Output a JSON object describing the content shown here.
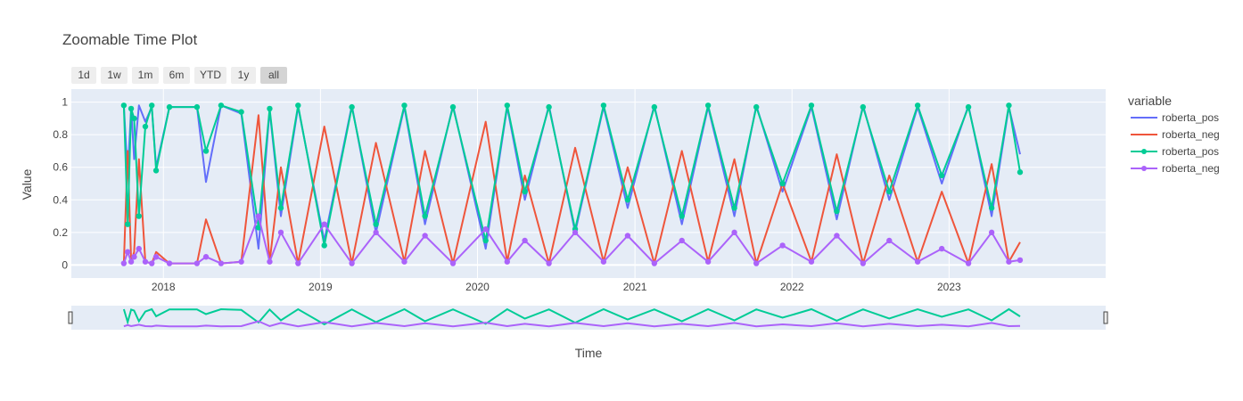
{
  "chart_data": {
    "type": "line",
    "title": "Zoomable Time Plot",
    "xlabel": "Time",
    "ylabel": "Value",
    "x_range": [
      "2017-06-01",
      "2023-12-31"
    ],
    "ylim": [
      -0.08,
      1.08
    ],
    "yticks": [
      0,
      0.2,
      0.4,
      0.6,
      0.8,
      1
    ],
    "ytick_labels": [
      "0",
      "0.2",
      "0.4",
      "0.6",
      "0.8",
      "1"
    ],
    "xticks": [
      "2018-01-01",
      "2019-01-01",
      "2020-01-01",
      "2021-01-01",
      "2022-01-01",
      "2023-01-01"
    ],
    "xtick_labels": [
      "2018",
      "2019",
      "2020",
      "2021",
      "2022",
      "2023"
    ],
    "grid": true,
    "legend": {
      "title": "variable",
      "position": "right",
      "items": [
        "roberta_pos",
        "roberta_neg",
        "roberta_pos",
        "roberta_neg"
      ]
    },
    "range_selector": {
      "buttons": [
        "1d",
        "1w",
        "1m",
        "6m",
        "YTD",
        "1y",
        "all"
      ],
      "active": "all"
    },
    "series": [
      {
        "name": "roberta_pos",
        "color": "#636efa",
        "mode": "lines",
        "x": [
          "2017-10-01",
          "2017-10-10",
          "2017-10-18",
          "2017-10-25",
          "2017-11-05",
          "2017-11-20",
          "2017-12-05",
          "2017-12-15",
          "2018-01-15",
          "2018-03-20",
          "2018-04-10",
          "2018-05-15",
          "2018-07-01",
          "2018-08-10",
          "2018-09-05",
          "2018-10-01",
          "2018-11-10",
          "2019-01-10",
          "2019-03-15",
          "2019-05-10",
          "2019-07-15",
          "2019-09-01",
          "2019-11-05",
          "2020-01-20",
          "2020-03-10",
          "2020-04-20",
          "2020-06-15",
          "2020-08-15",
          "2020-10-20",
          "2020-12-15",
          "2021-02-15",
          "2021-04-20",
          "2021-06-20",
          "2021-08-20",
          "2021-10-10",
          "2021-12-10",
          "2022-02-15",
          "2022-04-15",
          "2022-06-15",
          "2022-08-15",
          "2022-10-20",
          "2022-12-15",
          "2023-02-15",
          "2023-04-10",
          "2023-05-20",
          "2023-06-15"
        ],
        "values": [
          0.98,
          0.55,
          0.97,
          0.65,
          0.98,
          0.88,
          0.97,
          0.6,
          0.97,
          0.97,
          0.51,
          0.98,
          0.93,
          0.1,
          0.95,
          0.3,
          0.97,
          0.15,
          0.98,
          0.2,
          0.97,
          0.25,
          0.98,
          0.1,
          0.97,
          0.4,
          0.98,
          0.2,
          0.97,
          0.35,
          0.98,
          0.25,
          0.97,
          0.3,
          0.98,
          0.45,
          0.97,
          0.28,
          0.98,
          0.4,
          0.97,
          0.5,
          0.98,
          0.3,
          0.97,
          0.68
        ]
      },
      {
        "name": "roberta_neg",
        "color": "#ef553b",
        "mode": "lines",
        "x": [
          "2017-10-01",
          "2017-10-10",
          "2017-10-18",
          "2017-10-25",
          "2017-11-05",
          "2017-11-20",
          "2017-12-05",
          "2017-12-15",
          "2018-01-15",
          "2018-03-20",
          "2018-04-10",
          "2018-05-15",
          "2018-07-01",
          "2018-08-10",
          "2018-09-05",
          "2018-10-01",
          "2018-11-10",
          "2019-01-10",
          "2019-03-15",
          "2019-05-10",
          "2019-07-15",
          "2019-09-01",
          "2019-11-05",
          "2020-01-20",
          "2020-03-10",
          "2020-04-20",
          "2020-06-15",
          "2020-08-15",
          "2020-10-20",
          "2020-12-15",
          "2021-02-15",
          "2021-04-20",
          "2021-06-20",
          "2021-08-20",
          "2021-10-10",
          "2021-12-10",
          "2022-02-15",
          "2022-04-15",
          "2022-06-15",
          "2022-08-15",
          "2022-10-20",
          "2022-12-15",
          "2023-02-15",
          "2023-04-10",
          "2023-05-20",
          "2023-06-15"
        ],
        "values": [
          0.01,
          0.7,
          0.02,
          0.08,
          0.65,
          0.02,
          0.01,
          0.08,
          0.01,
          0.01,
          0.28,
          0.01,
          0.02,
          0.92,
          0.02,
          0.6,
          0.01,
          0.85,
          0.01,
          0.75,
          0.02,
          0.7,
          0.01,
          0.88,
          0.02,
          0.55,
          0.01,
          0.72,
          0.02,
          0.6,
          0.01,
          0.7,
          0.02,
          0.65,
          0.01,
          0.5,
          0.02,
          0.68,
          0.01,
          0.55,
          0.02,
          0.45,
          0.01,
          0.62,
          0.02,
          0.14
        ]
      },
      {
        "name": "roberta_pos",
        "color": "#00cc96",
        "mode": "lines+markers",
        "x": [
          "2017-10-01",
          "2017-10-10",
          "2017-10-18",
          "2017-10-25",
          "2017-11-05",
          "2017-11-20",
          "2017-12-05",
          "2017-12-15",
          "2018-01-15",
          "2018-03-20",
          "2018-04-10",
          "2018-05-15",
          "2018-07-01",
          "2018-08-10",
          "2018-09-05",
          "2018-10-01",
          "2018-11-10",
          "2019-01-10",
          "2019-03-15",
          "2019-05-10",
          "2019-07-15",
          "2019-09-01",
          "2019-11-05",
          "2020-01-20",
          "2020-03-10",
          "2020-04-20",
          "2020-06-15",
          "2020-08-15",
          "2020-10-20",
          "2020-12-15",
          "2021-02-15",
          "2021-04-20",
          "2021-06-20",
          "2021-08-20",
          "2021-10-10",
          "2021-12-10",
          "2022-02-15",
          "2022-04-15",
          "2022-06-15",
          "2022-08-15",
          "2022-10-20",
          "2022-12-15",
          "2023-02-15",
          "2023-04-10",
          "2023-05-20",
          "2023-06-15"
        ],
        "values": [
          0.98,
          0.25,
          0.96,
          0.9,
          0.3,
          0.85,
          0.98,
          0.58,
          0.97,
          0.97,
          0.7,
          0.98,
          0.94,
          0.23,
          0.96,
          0.35,
          0.98,
          0.12,
          0.97,
          0.25,
          0.98,
          0.3,
          0.97,
          0.15,
          0.98,
          0.45,
          0.97,
          0.22,
          0.98,
          0.4,
          0.97,
          0.3,
          0.98,
          0.35,
          0.97,
          0.5,
          0.98,
          0.33,
          0.97,
          0.45,
          0.98,
          0.55,
          0.97,
          0.35,
          0.98,
          0.57
        ]
      },
      {
        "name": "roberta_neg",
        "color": "#ab63fa",
        "mode": "lines+markers",
        "x": [
          "2017-10-01",
          "2017-10-10",
          "2017-10-18",
          "2017-10-25",
          "2017-11-05",
          "2017-11-20",
          "2017-12-05",
          "2017-12-15",
          "2018-01-15",
          "2018-03-20",
          "2018-04-10",
          "2018-05-15",
          "2018-07-01",
          "2018-08-10",
          "2018-09-05",
          "2018-10-01",
          "2018-11-10",
          "2019-01-10",
          "2019-03-15",
          "2019-05-10",
          "2019-07-15",
          "2019-09-01",
          "2019-11-05",
          "2020-01-20",
          "2020-03-10",
          "2020-04-20",
          "2020-06-15",
          "2020-08-15",
          "2020-10-20",
          "2020-12-15",
          "2021-02-15",
          "2021-04-20",
          "2021-06-20",
          "2021-08-20",
          "2021-10-10",
          "2021-12-10",
          "2022-02-15",
          "2022-04-15",
          "2022-06-15",
          "2022-08-15",
          "2022-10-20",
          "2022-12-15",
          "2023-02-15",
          "2023-04-10",
          "2023-05-20",
          "2023-06-15"
        ],
        "values": [
          0.01,
          0.08,
          0.02,
          0.05,
          0.1,
          0.02,
          0.01,
          0.05,
          0.01,
          0.01,
          0.05,
          0.01,
          0.02,
          0.3,
          0.02,
          0.2,
          0.01,
          0.25,
          0.01,
          0.2,
          0.02,
          0.18,
          0.01,
          0.22,
          0.02,
          0.15,
          0.01,
          0.2,
          0.02,
          0.18,
          0.01,
          0.15,
          0.02,
          0.2,
          0.01,
          0.12,
          0.02,
          0.18,
          0.01,
          0.15,
          0.02,
          0.1,
          0.01,
          0.2,
          0.02,
          0.03
        ]
      }
    ]
  }
}
